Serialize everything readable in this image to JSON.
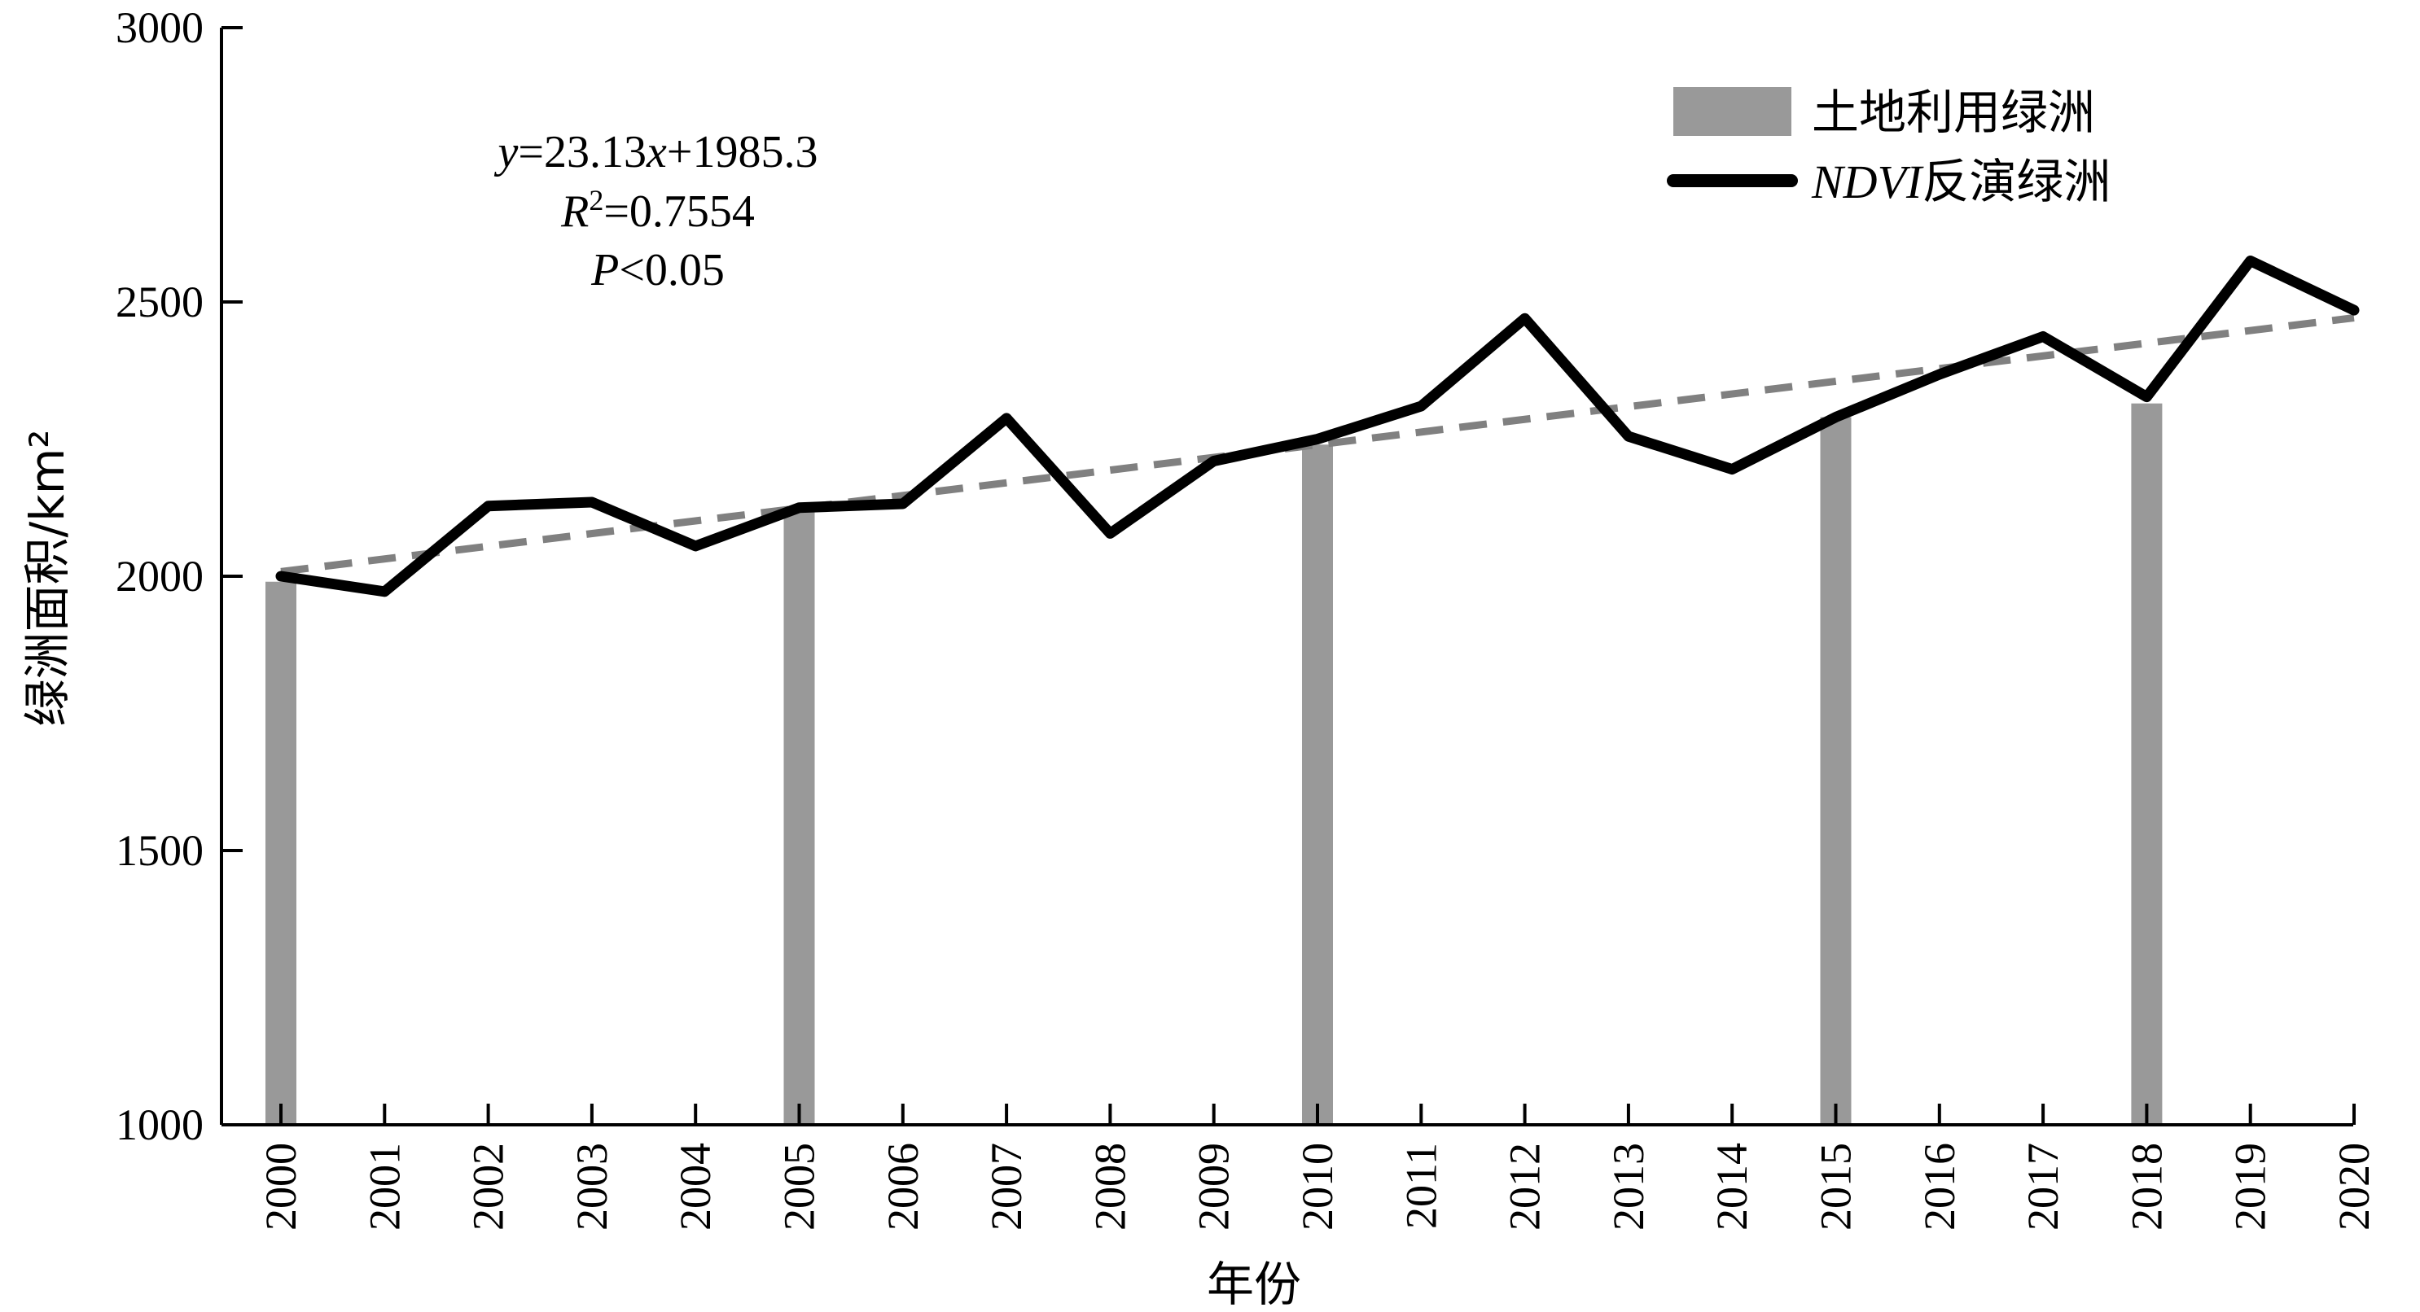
{
  "chart_data": {
    "type": "bar+line",
    "xlabel": "年份",
    "ylabel": "绿洲面积/km²",
    "ylim": [
      1000,
      3000
    ],
    "yticks": [
      1000,
      1500,
      2000,
      2500,
      3000
    ],
    "x": [
      "2000",
      "2001",
      "2002",
      "2003",
      "2004",
      "2005",
      "2006",
      "2007",
      "2008",
      "2009",
      "2010",
      "2011",
      "2012",
      "2013",
      "2014",
      "2015",
      "2016",
      "2017",
      "2018",
      "2019",
      "2020"
    ],
    "bar_series": {
      "name": "土地利用绿洲",
      "color": "#999999",
      "points": [
        {
          "x": "2000",
          "y": 1990
        },
        {
          "x": "2005",
          "y": 2125
        },
        {
          "x": "2010",
          "y": 2240
        },
        {
          "x": "2015",
          "y": 2290
        },
        {
          "x": "2018",
          "y": 2315
        }
      ]
    },
    "line_series": {
      "name_prefix": "NDVI",
      "name_suffix": "反演绿洲",
      "color": "#000000",
      "values": [
        2000,
        1972,
        2128,
        2135,
        2055,
        2125,
        2132,
        2288,
        2078,
        2210,
        2250,
        2310,
        2470,
        2255,
        2195,
        2290,
        2368,
        2437,
        2327,
        2575,
        2485
      ]
    },
    "trend": {
      "slope": 23.13,
      "intercept": 1985.3,
      "color": "#808080",
      "style": "dashed"
    },
    "annotation": {
      "y_symbol": "y",
      "equation_rest": "=23.13",
      "x_symbol": "x",
      "equation_tail": "+1985.3",
      "r_symbol": "R",
      "r_sup": "2",
      "r_value": "=0.7554",
      "p_symbol": "P",
      "p_value": "<0.05"
    },
    "legend_position": "top-right",
    "grid": false
  }
}
